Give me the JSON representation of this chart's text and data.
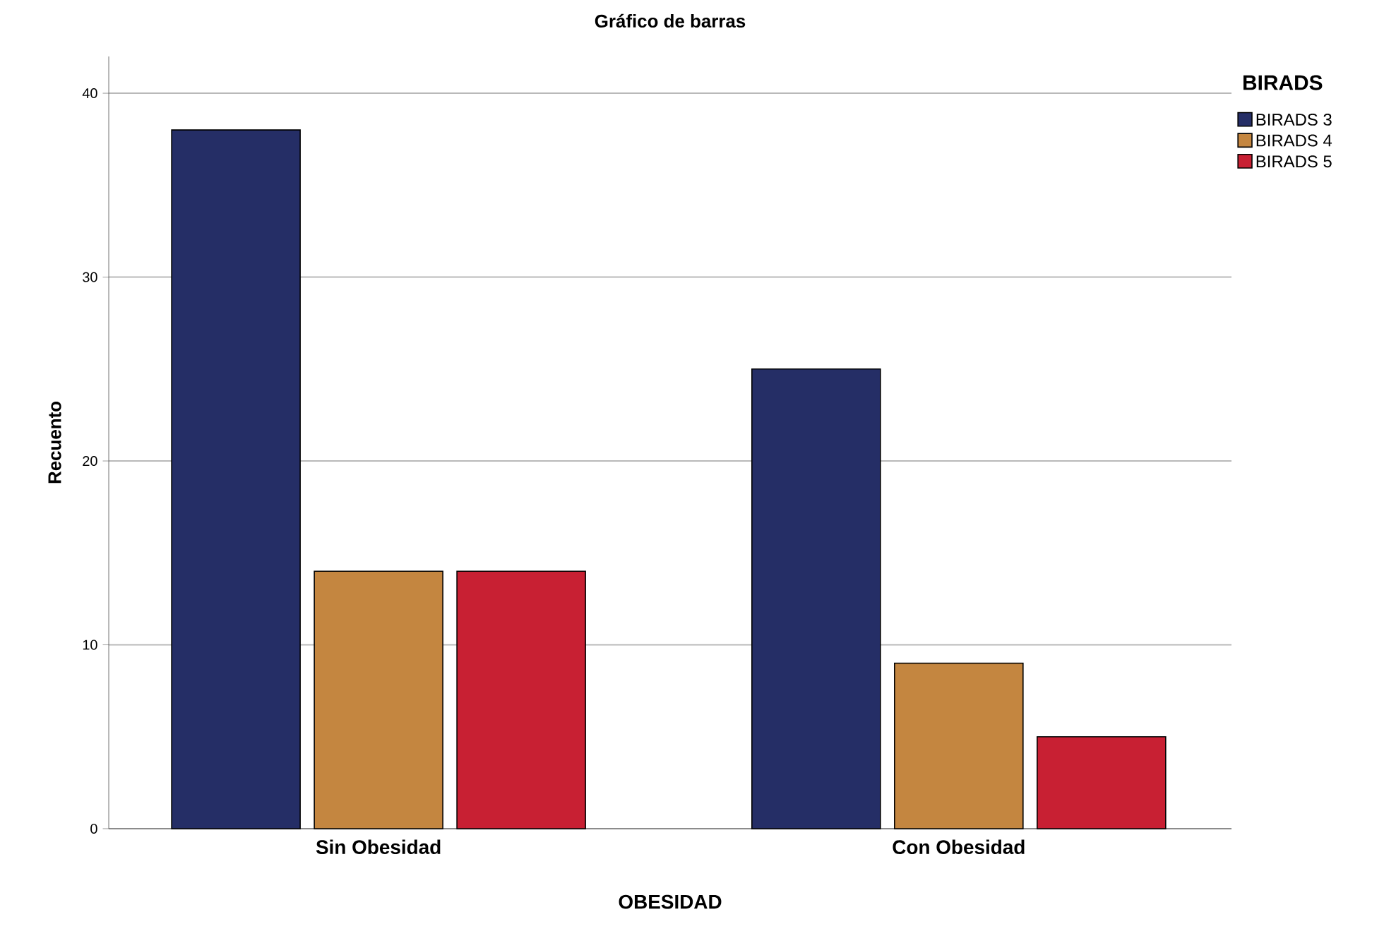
{
  "chart_data": {
    "type": "bar",
    "title": "Gráfico de barras",
    "xlabel": "OBESIDAD",
    "ylabel": "Recuento",
    "legend_title": "BIRADS",
    "categories": [
      "Sin Obesidad",
      "Con Obesidad"
    ],
    "series": [
      {
        "name": "BIRADS 3",
        "color": "#252e66",
        "values": [
          38,
          25
        ]
      },
      {
        "name": "BIRADS 4",
        "color": "#c48640",
        "values": [
          14,
          9
        ]
      },
      {
        "name": "BIRADS 5",
        "color": "#c82033",
        "values": [
          14,
          5
        ]
      }
    ],
    "ylim": [
      0,
      42
    ],
    "yticks": [
      0,
      10,
      20,
      30,
      40
    ],
    "grid": "y",
    "legend": "top right"
  }
}
